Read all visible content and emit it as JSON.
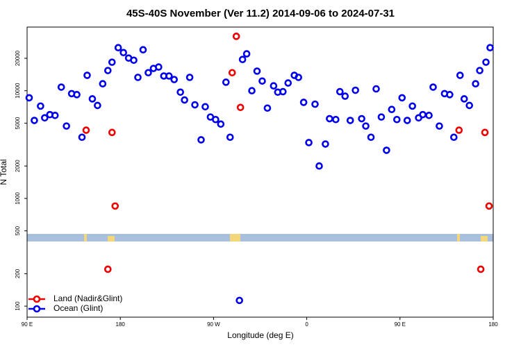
{
  "chart_data": {
    "type": "scatter",
    "title": "45S-40S November (Ver 11.2)   2014-09-06 to 2024-07-31",
    "x_label": "Longitude (deg E)",
    "y_label": "N Total",
    "xlim": [
      90,
      540
    ],
    "xticks": [
      {
        "value": 90,
        "label": "90 E"
      },
      {
        "value": 180,
        "label": "180"
      },
      {
        "value": 270,
        "label": "90 W"
      },
      {
        "value": 360,
        "label": "0"
      },
      {
        "value": 450,
        "label": "90 E"
      },
      {
        "value": 540,
        "label": "180"
      }
    ],
    "ylim": [
      79,
      39000
    ],
    "yticks": [
      100,
      200,
      500,
      1000,
      2000,
      5000,
      10000,
      20000
    ],
    "log_y": true,
    "grid": false,
    "legend": "bottom-left",
    "series": [
      {
        "name": "Land (Nadir&Glint)",
        "color": "#ee0000",
        "x": [
          147,
          168,
          172,
          175,
          288,
          292,
          296,
          507,
          528,
          532,
          536
        ],
        "values": [
          4300,
          220,
          4100,
          850,
          14700,
          32000,
          7000,
          4300,
          220,
          4100,
          850
        ]
      },
      {
        "name": "Ocean (Glint)",
        "color": "#0000ee",
        "x": [
          92,
          97,
          103,
          107,
          112,
          117,
          123,
          128,
          133,
          138,
          143,
          148,
          153,
          158,
          163,
          168,
          172,
          178,
          183,
          188,
          193,
          197,
          202,
          207,
          212,
          217,
          222,
          227,
          232,
          238,
          242,
          247,
          252,
          258,
          262,
          267,
          272,
          277,
          282,
          286,
          295,
          298,
          302,
          307,
          312,
          317,
          322,
          328,
          332,
          337,
          342,
          348,
          352,
          357,
          362,
          368,
          372,
          378,
          382,
          388,
          392,
          397,
          402,
          407,
          413,
          417,
          422,
          427,
          432,
          437,
          442,
          447,
          452,
          457,
          462,
          468,
          472,
          478,
          482,
          488,
          493,
          498,
          502,
          508,
          512,
          517,
          523,
          527,
          533,
          537
        ],
        "values": [
          8600,
          5300,
          7200,
          5600,
          6000,
          5900,
          10800,
          4700,
          9400,
          9200,
          3700,
          13900,
          8400,
          7300,
          11600,
          15400,
          18400,
          25100,
          22600,
          20100,
          19200,
          13300,
          24000,
          14700,
          16100,
          16600,
          13700,
          13700,
          12700,
          9700,
          8200,
          13300,
          7400,
          3500,
          7100,
          5700,
          5400,
          4900,
          12000,
          3700,
          113,
          19500,
          22000,
          10000,
          15200,
          12300,
          6900,
          11100,
          9700,
          9800,
          11800,
          13900,
          13300,
          7800,
          3300,
          7500,
          2000,
          3200,
          5500,
          5400,
          9800,
          8900,
          5300,
          10100,
          5500,
          4700,
          3700,
          10400,
          5700,
          2800,
          6700,
          5400,
          8600,
          5300,
          7200,
          5600,
          6000,
          5900,
          10800,
          4700,
          9400,
          9200,
          3700,
          13900,
          8400,
          7300,
          11600,
          15400,
          18400,
          25100
        ]
      }
    ]
  }
}
